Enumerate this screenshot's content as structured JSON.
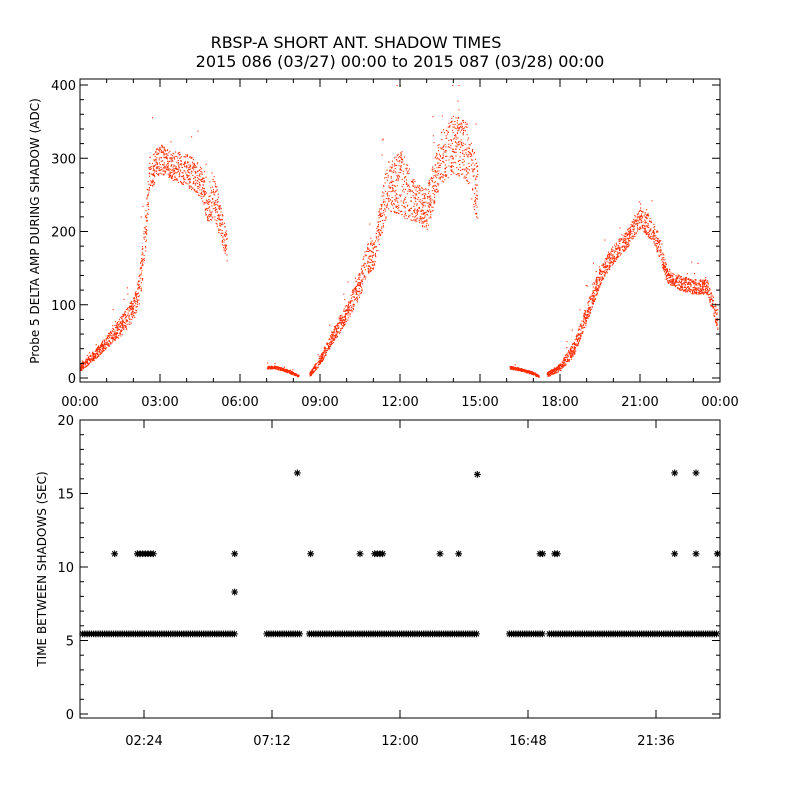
{
  "title": "RBSP-A SHORT ANT. SHADOW TIMES",
  "subtitle": "2015 086 (03/27) 00:00 to 2015 087 (03/28) 00:00",
  "chart_data": [
    {
      "type": "scatter",
      "ylabel": "Probe 5 DELTA AMP DURING SHADOW (ADC)",
      "xlabel": "",
      "xlim_hours": [
        0,
        24
      ],
      "ylim": [
        0,
        400
      ],
      "x_tick_labels": [
        "00:00",
        "03:00",
        "06:00",
        "09:00",
        "12:00",
        "15:00",
        "18:00",
        "21:00",
        "00:00"
      ],
      "y_tick_labels": [
        "0",
        "100",
        "200",
        "300",
        "400"
      ],
      "marker": "dot",
      "color": "#ff2a00",
      "x_unit": "hours after 00:00",
      "segments": [
        {
          "x": [
            0.0,
            0.5,
            1.0,
            1.5,
            2.0,
            2.2,
            2.4,
            2.6,
            2.8,
            3.0,
            3.5,
            4.0,
            4.5,
            4.8,
            5.0,
            5.5
          ],
          "y": [
            15,
            30,
            50,
            70,
            95,
            120,
            180,
            280,
            290,
            300,
            290,
            285,
            270,
            230,
            250,
            180
          ],
          "spread": [
            10,
            12,
            18,
            25,
            30,
            40,
            60,
            50,
            45,
            40,
            40,
            45,
            45,
            40,
            60,
            40
          ]
        },
        {
          "x": [
            7.0,
            7.3,
            7.6,
            7.9,
            8.2
          ],
          "y": [
            15,
            15,
            12,
            8,
            3
          ],
          "spread": [
            4,
            4,
            4,
            4,
            3
          ]
        },
        {
          "x": [
            8.6,
            9.0,
            9.5,
            10.0,
            10.5,
            10.7,
            11.0,
            11.5,
            12.0,
            12.3,
            12.6,
            13.0,
            13.5,
            14.0,
            14.5,
            14.9
          ],
          "y": [
            5,
            25,
            60,
            90,
            130,
            160,
            170,
            260,
            270,
            250,
            240,
            230,
            300,
            320,
            310,
            250
          ],
          "spread": [
            6,
            12,
            20,
            25,
            35,
            45,
            40,
            70,
            90,
            80,
            50,
            60,
            70,
            80,
            80,
            80
          ]
        },
        {
          "x": [
            16.1,
            16.5,
            16.9,
            17.2
          ],
          "y": [
            15,
            12,
            8,
            3
          ],
          "spread": [
            4,
            4,
            4,
            3
          ]
        },
        {
          "x": [
            17.5,
            18.0,
            18.5,
            19.0,
            19.5,
            20.0,
            20.5,
            21.0,
            21.5,
            21.8,
            22.0,
            22.5,
            23.0,
            23.5,
            23.9
          ],
          "y": [
            5,
            15,
            40,
            90,
            140,
            170,
            190,
            220,
            200,
            170,
            140,
            130,
            125,
            125,
            80
          ],
          "spread": [
            6,
            10,
            20,
            25,
            25,
            25,
            25,
            30,
            30,
            30,
            20,
            20,
            20,
            20,
            30
          ]
        }
      ]
    },
    {
      "type": "scatter",
      "ylabel": "TIME BETWEEN SHADOWS (SEC)",
      "xlabel": "",
      "xlim_hours": [
        0,
        24
      ],
      "ylim": [
        0,
        20
      ],
      "x_tick_labels": [
        "02:24",
        "07:12",
        "12:00",
        "16:48",
        "21:36"
      ],
      "y_tick_labels": [
        "0",
        "5",
        "10",
        "15",
        "20"
      ],
      "marker": "asterisk",
      "color": "#000000",
      "x_unit": "hours after 00:00",
      "baseline_runs": [
        {
          "start": 0.1,
          "end": 5.8,
          "y": 5.45
        },
        {
          "start": 7.0,
          "end": 8.3,
          "y": 5.45
        },
        {
          "start": 8.6,
          "end": 14.9,
          "y": 5.45
        },
        {
          "start": 16.1,
          "end": 17.4,
          "y": 5.45
        },
        {
          "start": 17.6,
          "end": 23.9,
          "y": 5.45
        }
      ],
      "points": {
        "x": [
          1.3,
          2.15,
          2.25,
          2.35,
          2.45,
          2.55,
          2.65,
          2.75,
          5.8,
          5.8,
          8.15,
          8.65,
          10.5,
          11.05,
          11.15,
          11.25,
          11.35,
          13.5,
          14.2,
          14.9,
          17.25,
          17.35,
          17.8,
          17.9,
          22.3,
          22.3,
          23.1,
          23.1,
          23.9
        ],
        "y": [
          10.9,
          10.9,
          10.9,
          10.9,
          10.9,
          10.9,
          10.9,
          10.9,
          10.9,
          8.3,
          16.4,
          10.9,
          10.9,
          10.9,
          10.9,
          10.9,
          10.9,
          10.9,
          10.9,
          16.3,
          10.9,
          10.9,
          10.9,
          10.9,
          16.4,
          10.9,
          16.4,
          10.9,
          10.9
        ]
      }
    }
  ]
}
